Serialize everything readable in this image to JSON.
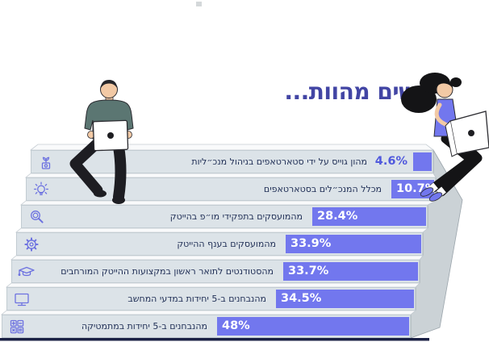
{
  "title": "נשים מהוות...",
  "colors": {
    "accent_bar": "#7277ee",
    "pct_outside_text": "#5059dd",
    "title_text": "#4245a4",
    "label_text": "#1f2e55",
    "step_face": "#dce3e8",
    "step_top": "#f9fafb",
    "side_panel": "#cbd2d6",
    "baseline": "#1b2145",
    "man_shirt": "#5b7672"
  },
  "chart_data": {
    "type": "bar",
    "orientation": "horizontal",
    "style": "staircase-infographic",
    "title": "נשים מהוות...",
    "unit": "%",
    "xlim": [
      0,
      100
    ],
    "grid": false,
    "legend": null,
    "categories": [
      "מהון גוייס על ידי סטארטאפים בניהול מנכ״ליות",
      "מכלל המנכ״לים בסטארטאפים",
      "מהמועסקים בתפקידי מו״פ בהייטק",
      "מהמועסקים בענף ההייטק",
      "מהסטודנטים לתואר ראשון במקצועות ההייטק המורחבים",
      "מהנבחנים ב-5 יחידות במדעי המחשב",
      "מהנבחנים ב-5 יחידות במתמטיקה"
    ],
    "values": [
      4.6,
      10.7,
      28.4,
      33.9,
      33.7,
      34.5,
      48
    ],
    "value_labels": [
      "4.6%",
      "10.7%",
      "28.4%",
      "33.9%",
      "33.7%",
      "34.5%",
      "48%"
    ],
    "icons": [
      "investment-growth-icon",
      "lightbulb-icon",
      "magnifier-gear-icon",
      "gear-icon",
      "graduation-cap-icon",
      "monitor-icon",
      "calculator-icon"
    ]
  },
  "rows": [
    {
      "value_label": "4.6%",
      "label": "מהון גוייס על ידי סטארטאפים בניהול מנכ״ליות"
    },
    {
      "value_label": "10.7%",
      "label": "מכלל המנכ״לים בסטארטאפים"
    },
    {
      "value_label": "28.4%",
      "label": "מהמועסקים בתפקידי מו״פ בהייטק"
    },
    {
      "value_label": "33.9%",
      "label": "מהמועסקים בענף ההייטק"
    },
    {
      "value_label": "33.7%",
      "label": "מהסטודנטים לתואר ראשון במקצועות ההייטק המורחבים"
    },
    {
      "value_label": "34.5%",
      "label": "מהנבחנים ב-5 יחידות במדעי המחשב"
    },
    {
      "value_label": "48%",
      "label": "מהנבחנים ב-5 יחידות במתמטיקה"
    }
  ]
}
